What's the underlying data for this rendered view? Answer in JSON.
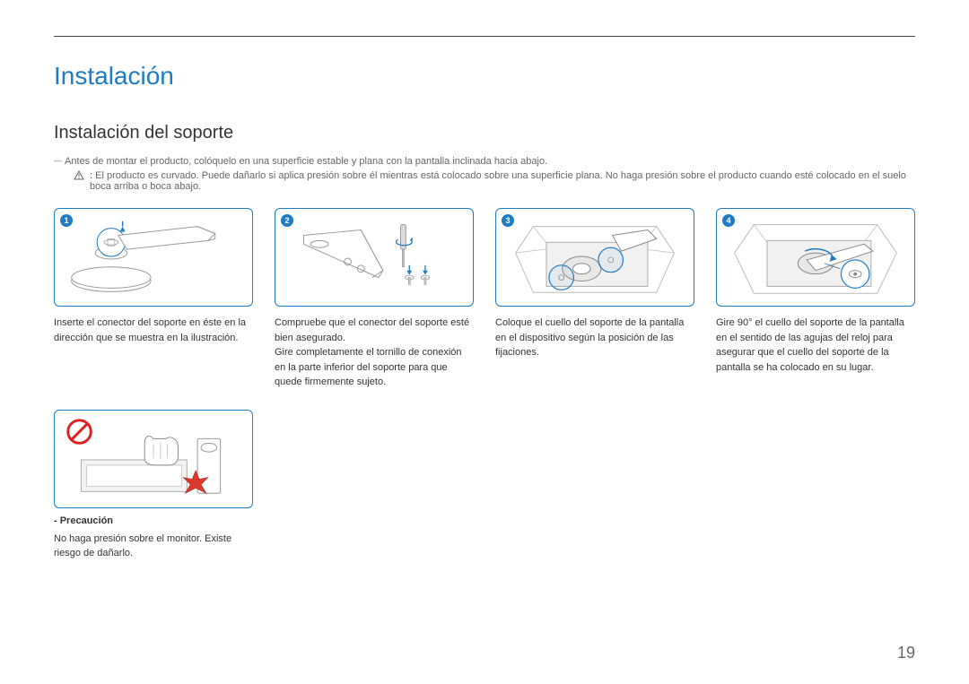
{
  "page": {
    "title": "Instalación",
    "subtitle": "Instalación del soporte",
    "note": "Antes de montar el producto, colóquelo en una superficie estable y plana con la pantalla inclinada hacia abajo.",
    "warning": ": El producto es curvado. Puede dañarlo si aplica presión sobre él mientras está colocado sobre una superficie plana. No haga presión sobre el producto cuando esté colocado en el suelo boca arriba o boca abajo.",
    "page_number": "19"
  },
  "colors": {
    "accent": "#1e7bc4",
    "text": "#333333",
    "muted": "#666666",
    "prohibit": "#e02020",
    "impact": "#d93a2b"
  },
  "steps": [
    {
      "num": "1",
      "text": "Inserte el conector del soporte en éste en la dirección que se muestra en la ilustración."
    },
    {
      "num": "2",
      "text": "Compruebe que el conector del soporte esté bien asegurado.\nGire completamente el tornillo de conexión en la parte inferior del soporte para que quede firmemente sujeto."
    },
    {
      "num": "3",
      "text": "Coloque el cuello del soporte de la pantalla en el dispositivo según la posición de las fijaciones."
    },
    {
      "num": "4",
      "text": "Gire 90° el cuello del soporte de la pantalla en el sentido de las agujas del reloj para asegurar que el cuello del soporte de la pantalla se ha colocado en su lugar."
    }
  ],
  "caution": {
    "label": "- Precaución",
    "text": "No haga presión sobre el monitor. Existe riesgo de dañarlo."
  }
}
